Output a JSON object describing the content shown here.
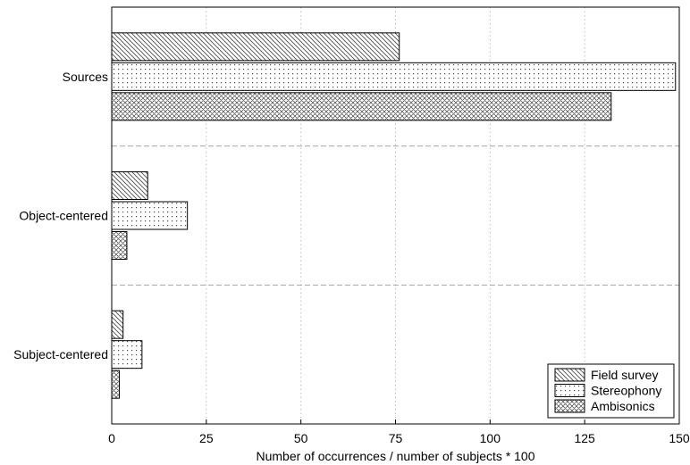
{
  "chart_data": {
    "type": "bar",
    "orientation": "horizontal",
    "title": "",
    "xlabel": "Number of occurrences / number of subjects * 100",
    "ylabel": "",
    "xlim": [
      0,
      150
    ],
    "xticks": [
      0,
      25,
      50,
      75,
      100,
      125,
      150
    ],
    "categories": [
      "Sources",
      "Object-centered",
      "Subject-centered"
    ],
    "series": [
      {
        "name": "Field survey",
        "values": [
          76,
          9.5,
          3
        ],
        "pattern": "diagonal-hatch"
      },
      {
        "name": "Stereophony",
        "values": [
          149,
          20,
          8
        ],
        "pattern": "dots"
      },
      {
        "name": "Ambisonics",
        "values": [
          132,
          4,
          2
        ],
        "pattern": "crosshatch"
      }
    ],
    "grid": true,
    "legend_position": "bottom-right",
    "colors": {
      "bar_stroke": "#000000",
      "grid": "#bfbfbf",
      "separator": "#a6a6a6"
    }
  }
}
